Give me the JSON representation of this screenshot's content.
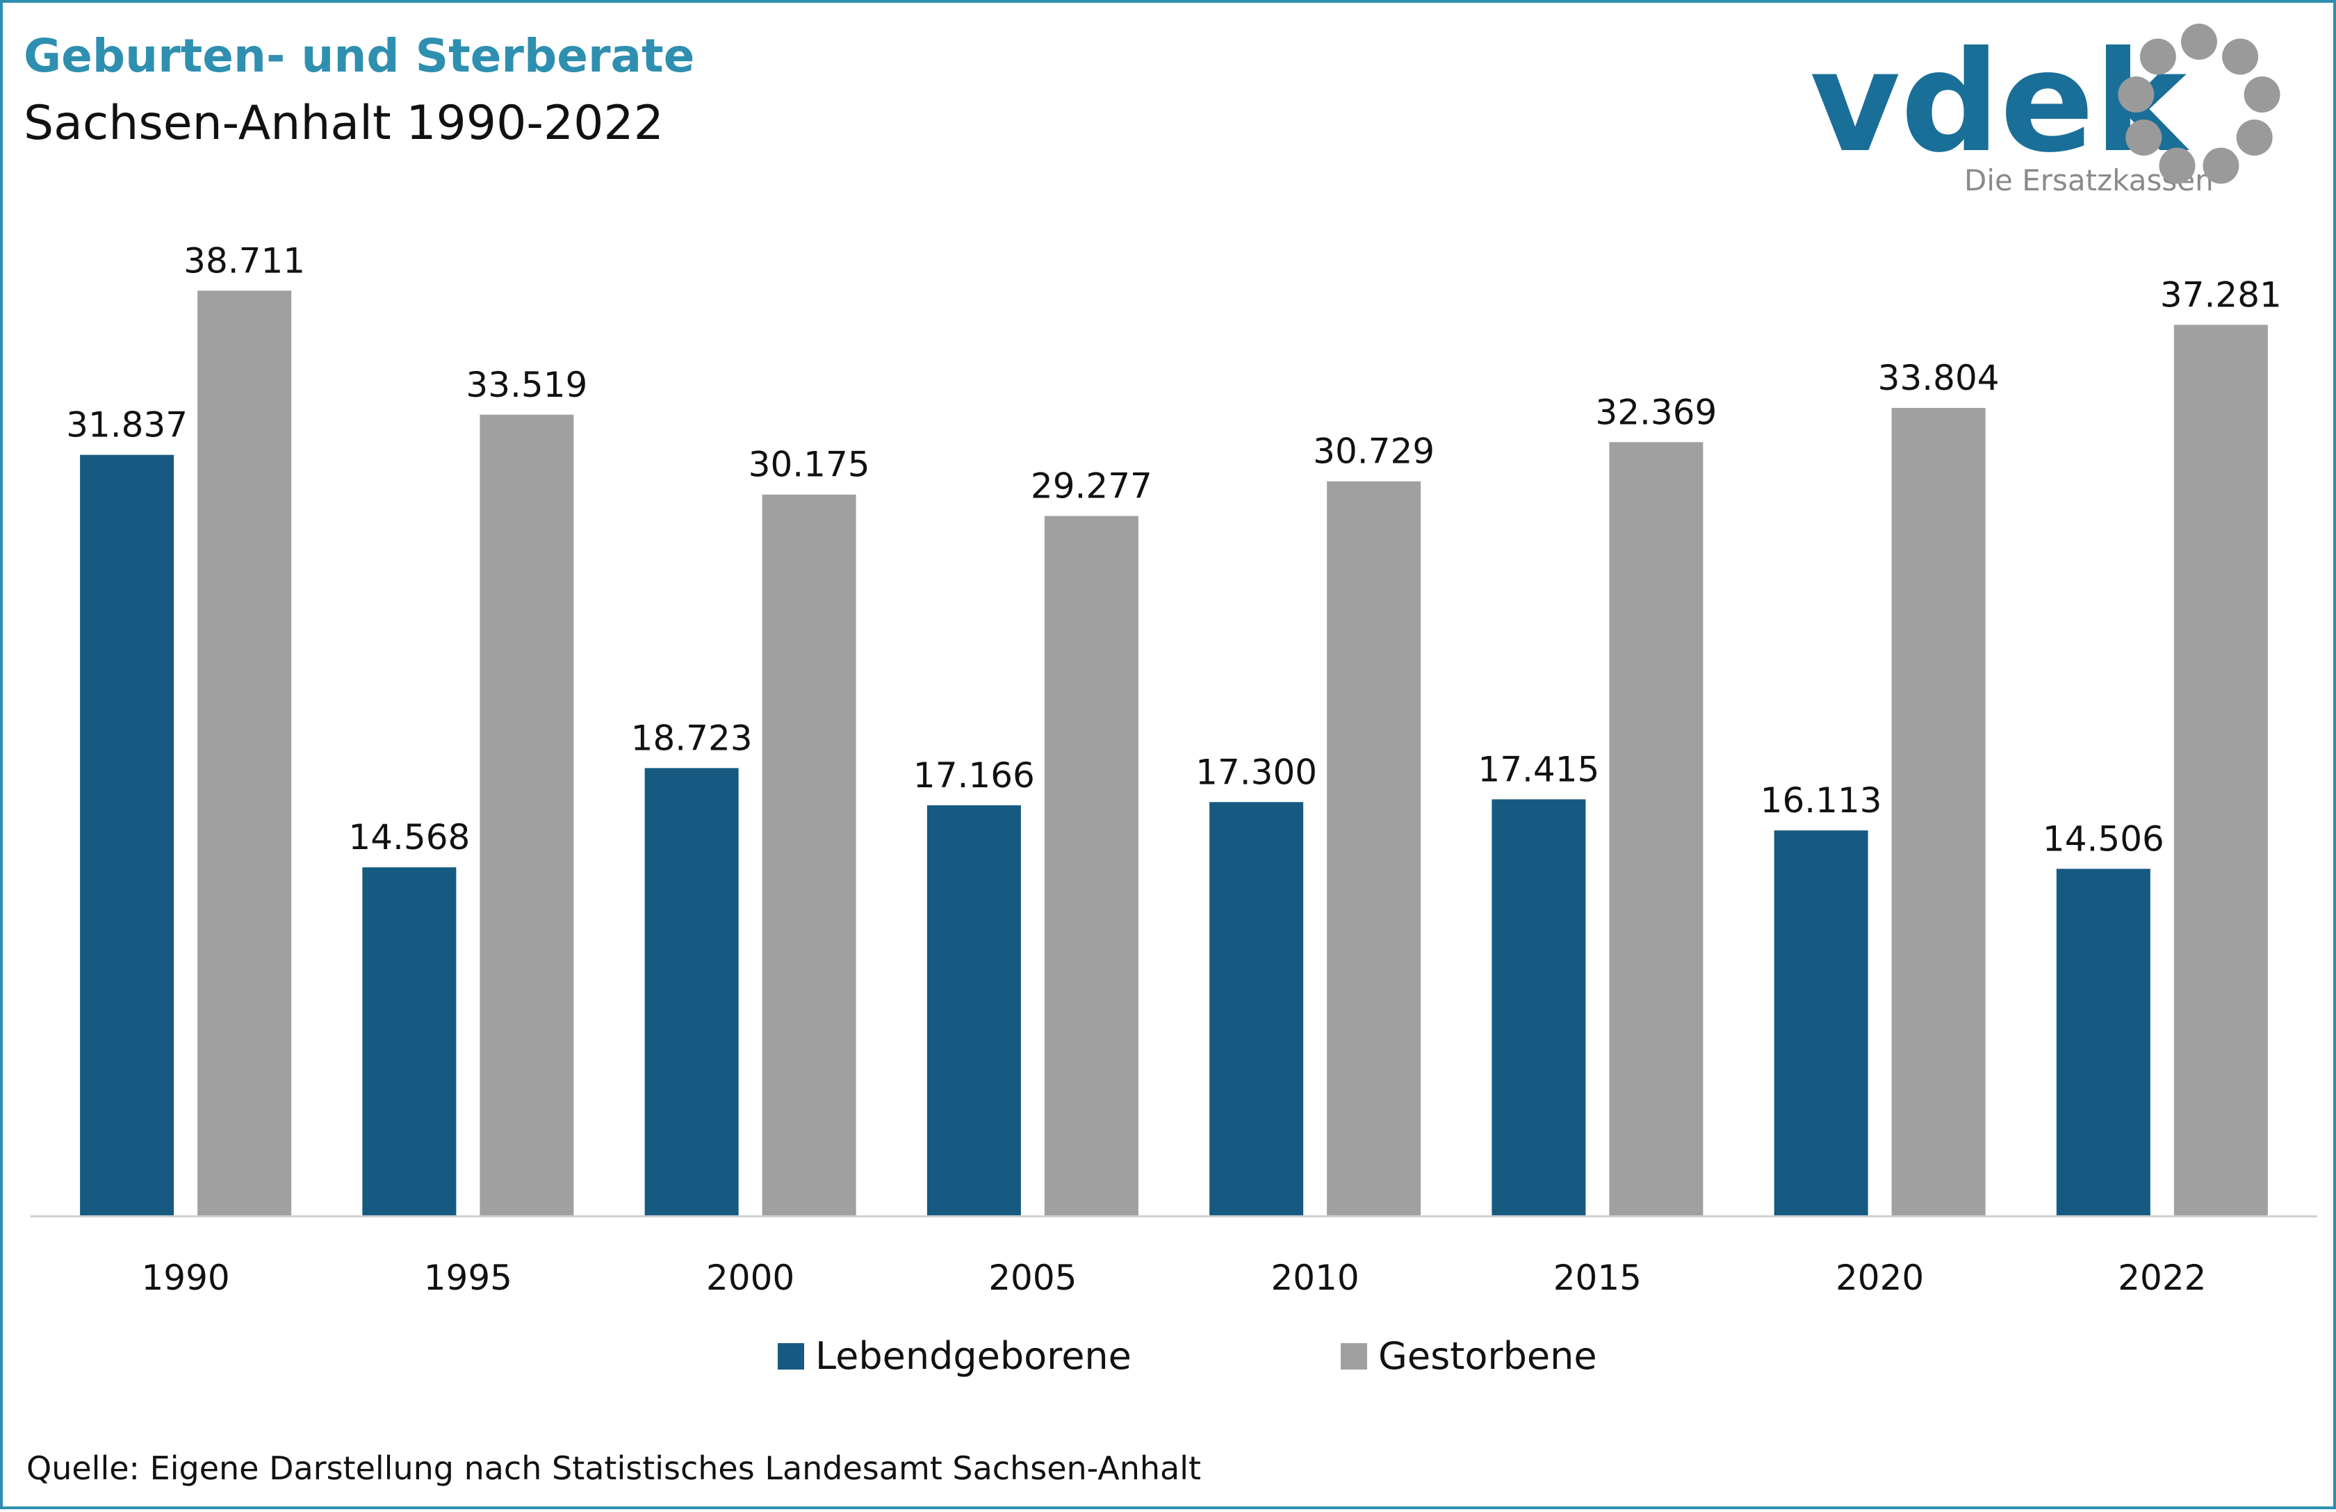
{
  "header": {
    "title": "Geburten- und Sterberate",
    "subtitle": "Sachsen-Anhalt 1990-2022"
  },
  "logo": {
    "wordmark": "vdek",
    "tagline": "Die Ersatzkassen",
    "icon": "ring-of-dots-icon",
    "colors": {
      "word": "#1a6f98",
      "ring": "#9a9a9a",
      "tagline": "#8a8a8a"
    }
  },
  "chart_data": {
    "type": "bar",
    "categories": [
      "1990",
      "1995",
      "2000",
      "2005",
      "2010",
      "2015",
      "2020",
      "2022"
    ],
    "series": [
      {
        "name": "Lebendgeborene",
        "color": "#165a82",
        "values": [
          31837,
          14568,
          18723,
          17166,
          17300,
          17415,
          16113,
          14506
        ],
        "labels": [
          "31.837",
          "14.568",
          "18.723",
          "17.166",
          "17.300",
          "17.415",
          "16.113",
          "14.506"
        ]
      },
      {
        "name": "Gestorbene",
        "color": "#a0a0a0",
        "values": [
          38711,
          33519,
          30175,
          29277,
          30729,
          32369,
          33804,
          37281
        ],
        "labels": [
          "38.711",
          "33.519",
          "30.175",
          "29.277",
          "30.729",
          "32.369",
          "33.804",
          "37.281"
        ]
      }
    ],
    "ylim": [
      0,
      40000
    ],
    "grid": false,
    "legend": "bottom",
    "xlabel": "",
    "ylabel": ""
  },
  "footer": {
    "source": "Quelle: Eigene Darstellung nach Statistisches Landesamt Sachsen-Anhalt"
  }
}
